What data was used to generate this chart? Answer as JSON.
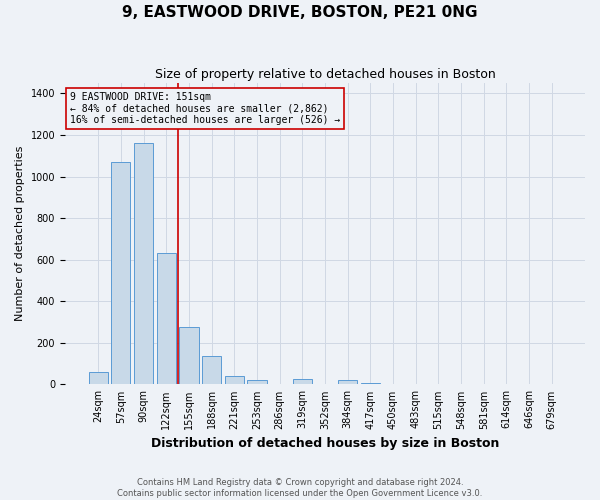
{
  "title": "9, EASTWOOD DRIVE, BOSTON, PE21 0NG",
  "subtitle": "Size of property relative to detached houses in Boston",
  "xlabel": "Distribution of detached houses by size in Boston",
  "ylabel": "Number of detached properties",
  "categories": [
    "24sqm",
    "57sqm",
    "90sqm",
    "122sqm",
    "155sqm",
    "188sqm",
    "221sqm",
    "253sqm",
    "286sqm",
    "319sqm",
    "352sqm",
    "384sqm",
    "417sqm",
    "450sqm",
    "483sqm",
    "515sqm",
    "548sqm",
    "581sqm",
    "614sqm",
    "646sqm",
    "679sqm"
  ],
  "values": [
    60,
    1070,
    1160,
    630,
    275,
    135,
    40,
    20,
    0,
    25,
    0,
    20,
    5,
    0,
    0,
    0,
    0,
    0,
    0,
    0,
    0
  ],
  "bar_color": "#c8d9e8",
  "bar_edge_color": "#5b9bd5",
  "grid_color": "#d0d8e4",
  "bg_color": "#eef2f7",
  "property_line_x": 3.5,
  "property_line_color": "#cc0000",
  "annotation_line1": "9 EASTWOOD DRIVE: 151sqm",
  "annotation_line2": "← 84% of detached houses are smaller (2,862)",
  "annotation_line3": "16% of semi-detached houses are larger (526) →",
  "annotation_box_color": "#cc0000",
  "footnote": "Contains HM Land Registry data © Crown copyright and database right 2024.\nContains public sector information licensed under the Open Government Licence v3.0.",
  "ylim": [
    0,
    1450
  ],
  "yticks": [
    0,
    200,
    400,
    600,
    800,
    1000,
    1200,
    1400
  ],
  "title_fontsize": 11,
  "subtitle_fontsize": 9,
  "tick_fontsize": 7,
  "ylabel_fontsize": 8,
  "xlabel_fontsize": 9,
  "annot_fontsize": 7,
  "footnote_fontsize": 6
}
